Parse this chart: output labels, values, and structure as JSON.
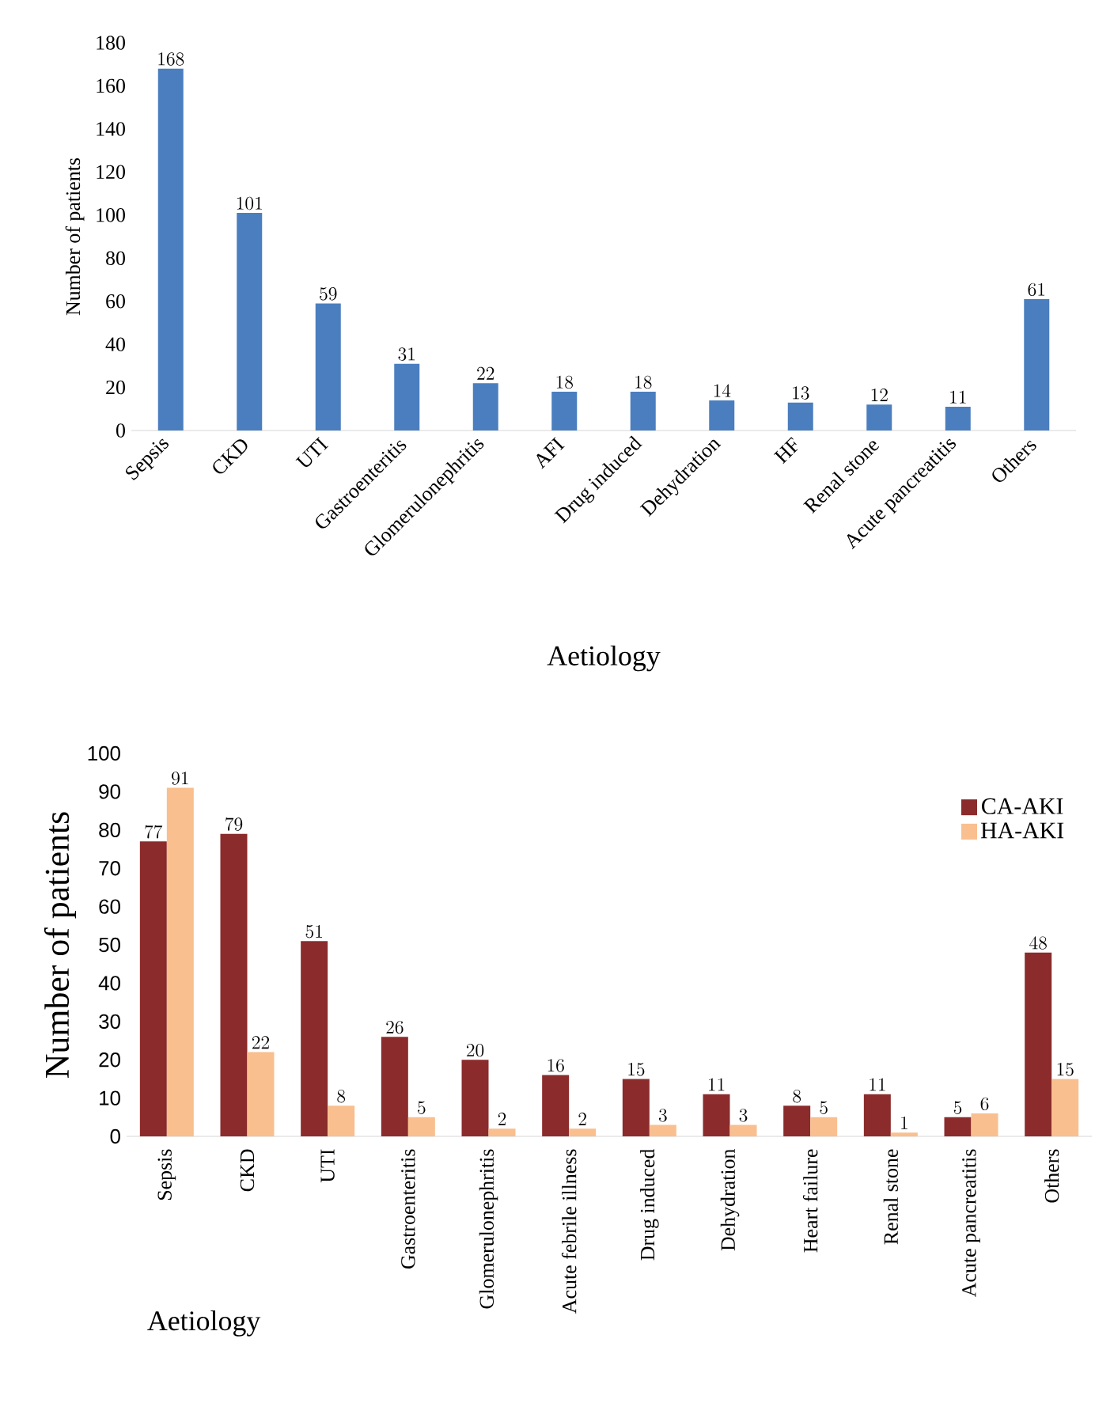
{
  "chart_data": [
    {
      "type": "bar",
      "xlabel": "Aetiology",
      "ylabel": "Number of patients",
      "categories": [
        "Sepsis",
        "CKD",
        "UTI",
        "Gastroenteritis",
        "Glomerulonephritis",
        "AFI",
        "Drug induced",
        "Dehydration",
        "HF",
        "Renal stone",
        "Acute pancreatitis",
        "Others"
      ],
      "values": [
        168,
        101,
        59,
        31,
        22,
        18,
        18,
        14,
        13,
        12,
        11,
        61
      ],
      "color": "#4a7ebf",
      "ylim": [
        0,
        180
      ],
      "yticks": [
        0,
        20,
        40,
        60,
        80,
        100,
        120,
        140,
        160,
        180
      ],
      "data_labels": true
    },
    {
      "type": "bar",
      "xlabel": "Aetiology",
      "ylabel": "Number of patients",
      "categories": [
        "Sepsis",
        "CKD",
        "UTI",
        "Gastroenteritis",
        "Glomerulonephritis",
        "Acute febrile illness",
        "Drug induced",
        "Dehydration",
        "Heart failure",
        "Renal stone",
        "Acute pancreatitis",
        "Others"
      ],
      "series": [
        {
          "name": "CA-AKI",
          "color": "#8b2b2b",
          "values": [
            77,
            79,
            51,
            26,
            20,
            16,
            15,
            11,
            8,
            11,
            5,
            48
          ]
        },
        {
          "name": "HA-AKI",
          "color": "#f9bf8f",
          "values": [
            91,
            22,
            8,
            5,
            2,
            2,
            3,
            3,
            5,
            1,
            6,
            15
          ]
        }
      ],
      "ylim": [
        0,
        100
      ],
      "yticks": [
        0,
        10,
        20,
        30,
        40,
        50,
        60,
        70,
        80,
        90,
        100
      ],
      "legend": "top right",
      "data_labels": true
    }
  ]
}
